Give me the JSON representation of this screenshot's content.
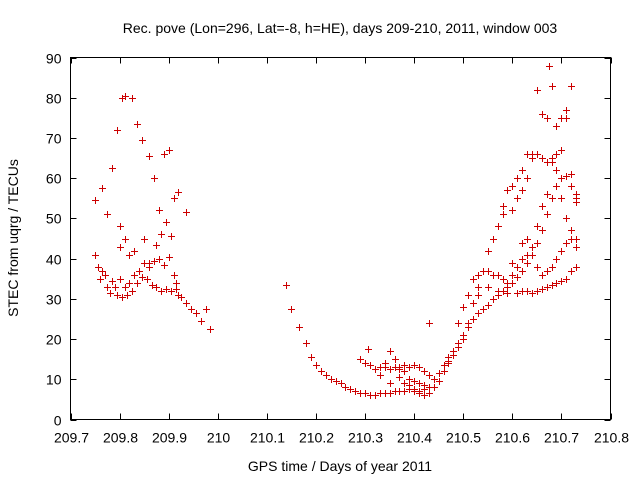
{
  "chart_data": {
    "type": "scatter",
    "title": "Rec. pove (Lon=296, Lat=-8, h=HE), days 209-210, 2011, window 003",
    "xlabel": "GPS time / Days of year 2011",
    "ylabel": "STEC from uqrg / TECUs",
    "xlim": [
      209.7,
      210.8
    ],
    "ylim": [
      0,
      90
    ],
    "x_ticks": [
      "209.7",
      "209.8",
      "209.9",
      "210",
      "210.1",
      "210.2",
      "210.3",
      "210.4",
      "210.5",
      "210.6",
      "210.7",
      "210.8"
    ],
    "y_ticks": [
      "0",
      "10",
      "20",
      "30",
      "40",
      "50",
      "60",
      "70",
      "80",
      "90"
    ],
    "grid": false,
    "marker": "plus",
    "color": "#cc0000",
    "series": [
      {
        "name": "",
        "points": [
          [
            209.75,
            54.5
          ],
          [
            209.765,
            57.5
          ],
          [
            209.775,
            51
          ],
          [
            209.785,
            62.5
          ],
          [
            209.795,
            72
          ],
          [
            209.8,
            48
          ],
          [
            209.805,
            80
          ],
          [
            209.812,
            80.5
          ],
          [
            209.825,
            80
          ],
          [
            209.835,
            73.5
          ],
          [
            209.845,
            69.5
          ],
          [
            209.86,
            65.5
          ],
          [
            209.87,
            60
          ],
          [
            209.88,
            52
          ],
          [
            209.89,
            66
          ],
          [
            209.9,
            67
          ],
          [
            209.91,
            55
          ],
          [
            209.92,
            56.5
          ],
          [
            209.935,
            51.5
          ],
          [
            209.75,
            41
          ],
          [
            209.755,
            38
          ],
          [
            209.76,
            35
          ],
          [
            209.765,
            37
          ],
          [
            209.77,
            36
          ],
          [
            209.775,
            33
          ],
          [
            209.78,
            31.5
          ],
          [
            209.785,
            34.5
          ],
          [
            209.79,
            33
          ],
          [
            209.795,
            31
          ],
          [
            209.8,
            35
          ],
          [
            209.805,
            30.5
          ],
          [
            209.81,
            33
          ],
          [
            209.815,
            31
          ],
          [
            209.82,
            34
          ],
          [
            209.825,
            32
          ],
          [
            209.83,
            36
          ],
          [
            209.835,
            34
          ],
          [
            209.84,
            37
          ],
          [
            209.845,
            35.5
          ],
          [
            209.85,
            39
          ],
          [
            209.855,
            35
          ],
          [
            209.86,
            38
          ],
          [
            209.865,
            33.5
          ],
          [
            209.87,
            39.5
          ],
          [
            209.875,
            33
          ],
          [
            209.88,
            40
          ],
          [
            209.885,
            32
          ],
          [
            209.89,
            38.5
          ],
          [
            209.895,
            32.5
          ],
          [
            209.9,
            40.5
          ],
          [
            209.905,
            32
          ],
          [
            209.91,
            36
          ],
          [
            209.915,
            32.5
          ],
          [
            209.92,
            31
          ],
          [
            209.925,
            30.5
          ],
          [
            209.935,
            29
          ],
          [
            209.945,
            27.5
          ],
          [
            209.955,
            26.5
          ],
          [
            209.965,
            24.5
          ],
          [
            209.975,
            27.5
          ],
          [
            209.985,
            22.5
          ],
          [
            209.8,
            43
          ],
          [
            209.81,
            45
          ],
          [
            209.82,
            41
          ],
          [
            209.83,
            42
          ],
          [
            209.85,
            45
          ],
          [
            209.86,
            39
          ],
          [
            209.875,
            43.5
          ],
          [
            209.885,
            46
          ],
          [
            209.895,
            49
          ],
          [
            209.905,
            45.5
          ],
          [
            209.915,
            34
          ],
          [
            210.14,
            33.5
          ],
          [
            210.15,
            27.5
          ],
          [
            210.165,
            23
          ],
          [
            210.18,
            19
          ],
          [
            210.19,
            15.5
          ],
          [
            210.2,
            13.5
          ],
          [
            210.21,
            12
          ],
          [
            210.22,
            11
          ],
          [
            210.23,
            10
          ],
          [
            210.24,
            9.5
          ],
          [
            210.25,
            9
          ],
          [
            210.26,
            8
          ],
          [
            210.27,
            7.5
          ],
          [
            210.28,
            7
          ],
          [
            210.29,
            6.5
          ],
          [
            210.3,
            6.5
          ],
          [
            210.31,
            6
          ],
          [
            210.32,
            6
          ],
          [
            210.33,
            6.5
          ],
          [
            210.34,
            6.5
          ],
          [
            210.35,
            6.5
          ],
          [
            210.36,
            7
          ],
          [
            210.37,
            7
          ],
          [
            210.38,
            7
          ],
          [
            210.39,
            7.5
          ],
          [
            210.4,
            7
          ],
          [
            210.41,
            7
          ],
          [
            210.42,
            7.5
          ],
          [
            210.43,
            8
          ],
          [
            210.29,
            15
          ],
          [
            210.3,
            14
          ],
          [
            210.31,
            13.5
          ],
          [
            210.32,
            12.5
          ],
          [
            210.33,
            13
          ],
          [
            210.34,
            13
          ],
          [
            210.35,
            12.5
          ],
          [
            210.36,
            13
          ],
          [
            210.37,
            12.5
          ],
          [
            210.38,
            13.5
          ],
          [
            210.39,
            13
          ],
          [
            210.4,
            13.5
          ],
          [
            210.41,
            13
          ],
          [
            210.42,
            12
          ],
          [
            210.43,
            11
          ],
          [
            210.305,
            17.5
          ],
          [
            210.34,
            14
          ],
          [
            210.35,
            17
          ],
          [
            210.36,
            15
          ],
          [
            210.37,
            13
          ],
          [
            210.38,
            12
          ],
          [
            210.39,
            10
          ],
          [
            210.4,
            9.5
          ],
          [
            210.41,
            9
          ],
          [
            210.42,
            8.5
          ],
          [
            210.43,
            24
          ],
          [
            210.44,
            10
          ],
          [
            210.45,
            11.5
          ],
          [
            210.46,
            13.5
          ],
          [
            210.47,
            15.5
          ],
          [
            210.48,
            17
          ],
          [
            210.49,
            19
          ],
          [
            210.5,
            21
          ],
          [
            210.51,
            23
          ],
          [
            210.52,
            25
          ],
          [
            210.53,
            26.5
          ],
          [
            210.54,
            27.5
          ],
          [
            210.55,
            28.5
          ],
          [
            210.56,
            30
          ],
          [
            210.57,
            31
          ],
          [
            210.58,
            32
          ],
          [
            210.59,
            33
          ],
          [
            210.6,
            34
          ],
          [
            210.61,
            35.5
          ],
          [
            210.62,
            37
          ],
          [
            210.63,
            39
          ],
          [
            210.64,
            41
          ],
          [
            210.65,
            44
          ],
          [
            210.66,
            47
          ],
          [
            210.67,
            51
          ],
          [
            210.68,
            55
          ],
          [
            210.69,
            58
          ],
          [
            210.7,
            60
          ],
          [
            210.71,
            60.5
          ],
          [
            210.72,
            58
          ],
          [
            210.73,
            54
          ],
          [
            210.33,
            11
          ],
          [
            210.35,
            9
          ],
          [
            210.37,
            10.5
          ],
          [
            210.38,
            9
          ],
          [
            210.39,
            8.5
          ],
          [
            210.4,
            7.5
          ],
          [
            210.41,
            6.5
          ],
          [
            210.42,
            6
          ],
          [
            210.43,
            6.5
          ],
          [
            210.44,
            8
          ],
          [
            210.45,
            9.5
          ],
          [
            210.46,
            12
          ],
          [
            210.47,
            14
          ],
          [
            210.48,
            16
          ],
          [
            210.49,
            18
          ],
          [
            210.5,
            20
          ],
          [
            210.51,
            24
          ],
          [
            210.52,
            29
          ],
          [
            210.53,
            33
          ],
          [
            210.54,
            37
          ],
          [
            210.55,
            42
          ],
          [
            210.56,
            45
          ],
          [
            210.57,
            48
          ],
          [
            210.58,
            53
          ],
          [
            210.59,
            57
          ],
          [
            210.6,
            58
          ],
          [
            210.61,
            60
          ],
          [
            210.62,
            62
          ],
          [
            210.63,
            66
          ],
          [
            210.64,
            65
          ],
          [
            210.65,
            66
          ],
          [
            210.66,
            65
          ],
          [
            210.67,
            64
          ],
          [
            210.68,
            65
          ],
          [
            210.69,
            66
          ],
          [
            210.7,
            67
          ],
          [
            210.71,
            75
          ],
          [
            210.72,
            83
          ],
          [
            210.73,
            55
          ],
          [
            210.47,
            14.5
          ],
          [
            210.49,
            24
          ],
          [
            210.5,
            28
          ],
          [
            210.51,
            31
          ],
          [
            210.52,
            35
          ],
          [
            210.53,
            36
          ],
          [
            210.54,
            37
          ],
          [
            210.55,
            37
          ],
          [
            210.56,
            36
          ],
          [
            210.57,
            36
          ],
          [
            210.58,
            35
          ],
          [
            210.59,
            34
          ],
          [
            210.6,
            36
          ],
          [
            210.61,
            38
          ],
          [
            210.62,
            40
          ],
          [
            210.63,
            41
          ],
          [
            210.64,
            41
          ],
          [
            210.65,
            38
          ],
          [
            210.66,
            36
          ],
          [
            210.67,
            37
          ],
          [
            210.68,
            38
          ],
          [
            210.69,
            40
          ],
          [
            210.7,
            42
          ],
          [
            210.71,
            44
          ],
          [
            210.72,
            45
          ],
          [
            210.73,
            45
          ],
          [
            210.58,
            51
          ],
          [
            210.6,
            52
          ],
          [
            210.61,
            55
          ],
          [
            210.62,
            57
          ],
          [
            210.63,
            60
          ],
          [
            210.64,
            66
          ],
          [
            210.65,
            82
          ],
          [
            210.66,
            76
          ],
          [
            210.67,
            75
          ],
          [
            210.675,
            88
          ],
          [
            210.68,
            83
          ],
          [
            210.69,
            73
          ],
          [
            210.7,
            75
          ],
          [
            210.71,
            77
          ],
          [
            210.72,
            61
          ],
          [
            210.73,
            56
          ],
          [
            210.53,
            31
          ],
          [
            210.55,
            33
          ],
          [
            210.57,
            32
          ],
          [
            210.59,
            31.5
          ],
          [
            210.61,
            31.5
          ],
          [
            210.62,
            32
          ],
          [
            210.63,
            32
          ],
          [
            210.64,
            31.5
          ],
          [
            210.65,
            32
          ],
          [
            210.66,
            32.5
          ],
          [
            210.67,
            33
          ],
          [
            210.68,
            33.5
          ],
          [
            210.69,
            34
          ],
          [
            210.7,
            34.5
          ],
          [
            210.71,
            35
          ],
          [
            210.72,
            37
          ],
          [
            210.73,
            38
          ],
          [
            210.58,
            32
          ],
          [
            210.6,
            39
          ],
          [
            210.62,
            44
          ],
          [
            210.63,
            45
          ],
          [
            210.64,
            43
          ],
          [
            210.65,
            48
          ],
          [
            210.66,
            53
          ],
          [
            210.67,
            56
          ],
          [
            210.68,
            64
          ],
          [
            210.69,
            62
          ],
          [
            210.7,
            55
          ],
          [
            210.71,
            50
          ],
          [
            210.72,
            47
          ],
          [
            210.73,
            43
          ]
        ]
      }
    ]
  }
}
